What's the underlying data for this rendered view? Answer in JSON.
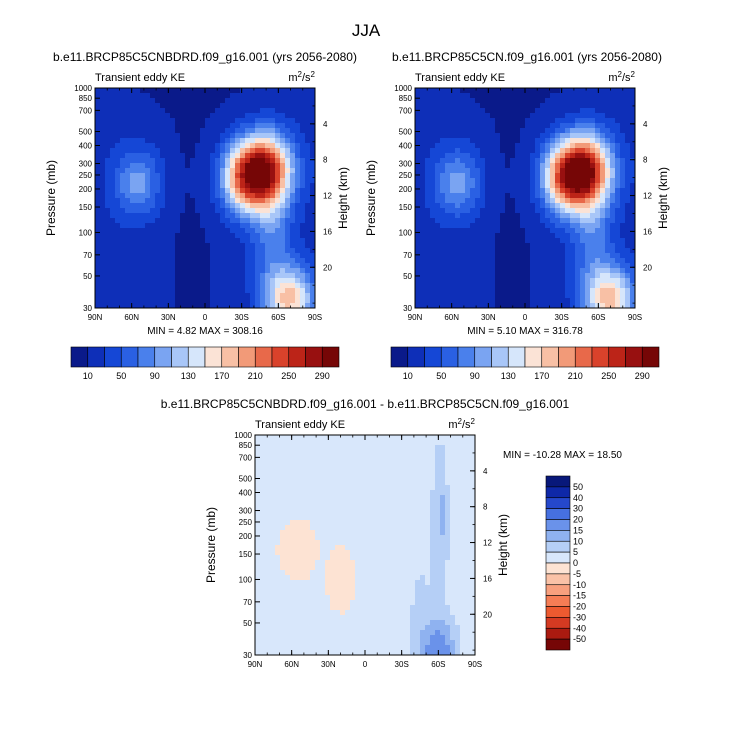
{
  "figure": {
    "title": "JJA"
  },
  "chart_data": [
    {
      "type": "heatmap",
      "title": "b.e11.BRCP85C5CNBDRD.f09_g16.001 (yrs 2056-2080)",
      "left_label": "Transient eddy KE",
      "units_main": "m",
      "units_exp1": "2",
      "units_mid": "/s",
      "units_exp2": "2",
      "ylabel": "Pressure (mb)",
      "y2label": "Height (km)",
      "yticks": [
        "30",
        "50",
        "70",
        "100",
        "150",
        "200",
        "250",
        "300",
        "400",
        "500",
        "700",
        "850",
        "1000"
      ],
      "ytick_values": [
        30,
        50,
        70,
        100,
        150,
        200,
        250,
        300,
        400,
        500,
        700,
        850,
        1000
      ],
      "xticks": [
        "90N",
        "60N",
        "30N",
        "0",
        "30S",
        "60S",
        "90S"
      ],
      "xtick_values": [
        90,
        60,
        30,
        0,
        -30,
        -60,
        -90
      ],
      "heights": [
        "4",
        "8",
        "12",
        "16",
        "20"
      ],
      "height_values": [
        4,
        8,
        12,
        16,
        20
      ],
      "stats": "MIN =   4.82  MAX = 308.16",
      "field": "A",
      "features": [
        {
          "lat": -45,
          "p": 270,
          "amp": 250
        },
        {
          "lat": -32,
          "p": 210,
          "amp": 90
        },
        {
          "lat": 55,
          "p": 220,
          "amp": 80
        },
        {
          "lat": -70,
          "p": 35,
          "amp": 150
        }
      ]
    },
    {
      "type": "heatmap",
      "title": "b.e11.BRCP85C5CN.f09_g16.001 (yrs 2056-2080)",
      "left_label": "Transient eddy KE",
      "units_main": "m",
      "units_exp1": "2",
      "units_mid": "/s",
      "units_exp2": "2",
      "ylabel": "Pressure (mb)",
      "y2label": "Height (km)",
      "yticks": [
        "30",
        "50",
        "70",
        "100",
        "150",
        "200",
        "250",
        "300",
        "400",
        "500",
        "700",
        "850",
        "1000"
      ],
      "ytick_values": [
        30,
        50,
        70,
        100,
        150,
        200,
        250,
        300,
        400,
        500,
        700,
        850,
        1000
      ],
      "xticks": [
        "90N",
        "60N",
        "30N",
        "0",
        "30S",
        "60S",
        "90S"
      ],
      "xtick_values": [
        90,
        60,
        30,
        0,
        -30,
        -60,
        -90
      ],
      "heights": [
        "4",
        "8",
        "12",
        "16",
        "20"
      ],
      "height_values": [
        4,
        8,
        12,
        16,
        20
      ],
      "stats": "MIN =   5.10  MAX = 316.78",
      "field": "A",
      "features": [
        {
          "lat": -45,
          "p": 270,
          "amp": 255
        },
        {
          "lat": -32,
          "p": 210,
          "amp": 92
        },
        {
          "lat": 55,
          "p": 220,
          "amp": 82
        },
        {
          "lat": -70,
          "p": 35,
          "amp": 155
        }
      ]
    },
    {
      "type": "heatmap",
      "title": "b.e11.BRCP85C5CNBDRD.f09_g16.001 - b.e11.BRCP85C5CN.f09_g16.001",
      "left_label": "Transient eddy KE",
      "units_main": "m",
      "units_exp1": "2",
      "units_mid": "/s",
      "units_exp2": "2",
      "ylabel": "Pressure (mb)",
      "y2label": "Height (km)",
      "yticks": [
        "30",
        "50",
        "70",
        "100",
        "150",
        "200",
        "250",
        "300",
        "400",
        "500",
        "700",
        "850",
        "1000"
      ],
      "ytick_values": [
        30,
        50,
        70,
        100,
        150,
        200,
        250,
        300,
        400,
        500,
        700,
        850,
        1000
      ],
      "xticks": [
        "90N",
        "60N",
        "30N",
        "0",
        "30S",
        "60S",
        "90S"
      ],
      "xtick_values": [
        90,
        60,
        30,
        0,
        -30,
        -60,
        -90
      ],
      "heights": [
        "4",
        "8",
        "12",
        "16",
        "20"
      ],
      "height_values": [
        4,
        8,
        12,
        16,
        20
      ],
      "stats": "MIN = -10.28  MAX =  18.50",
      "field": "D",
      "features": [
        {
          "lat": -60,
          "p": 32,
          "amp": 16
        },
        {
          "lat": -62,
          "p": 300,
          "amp": 8
        }
      ]
    }
  ],
  "colorbars": {
    "main": {
      "labels": [
        "10",
        "50",
        "90",
        "130",
        "170",
        "210",
        "250",
        "290"
      ],
      "levels": [
        10,
        30,
        50,
        70,
        90,
        110,
        130,
        150,
        170,
        190,
        210,
        230,
        250,
        270,
        290
      ],
      "colors": [
        "#0a1a8a",
        "#0e2fb8",
        "#1547d6",
        "#2a60e3",
        "#4a80ec",
        "#7aa4f2",
        "#a8c6f8",
        "#d6e6fb",
        "#fbe3d6",
        "#f8c0a5",
        "#f29a78",
        "#e8694a",
        "#d9422b",
        "#bc2418",
        "#981010",
        "#760606"
      ]
    },
    "diff": {
      "labels": [
        "50",
        "40",
        "30",
        "20",
        "15",
        "10",
        "5",
        "0",
        "-5",
        "-10",
        "-15",
        "-20",
        "-30",
        "-40",
        "-50"
      ],
      "levels": [
        -50,
        -40,
        -30,
        -20,
        -15,
        -10,
        -5,
        0,
        5,
        10,
        15,
        20,
        30,
        40,
        50
      ],
      "colors": [
        "#760606",
        "#aa1a10",
        "#d43a22",
        "#ec5a30",
        "#f57d55",
        "#f8a07e",
        "#fac2a7",
        "#fde3d3",
        "#d8e7fb",
        "#b5cff6",
        "#8fb2f0",
        "#6a92ea",
        "#4670e0",
        "#2548cc",
        "#0e28a8",
        "#08187a"
      ]
    }
  }
}
